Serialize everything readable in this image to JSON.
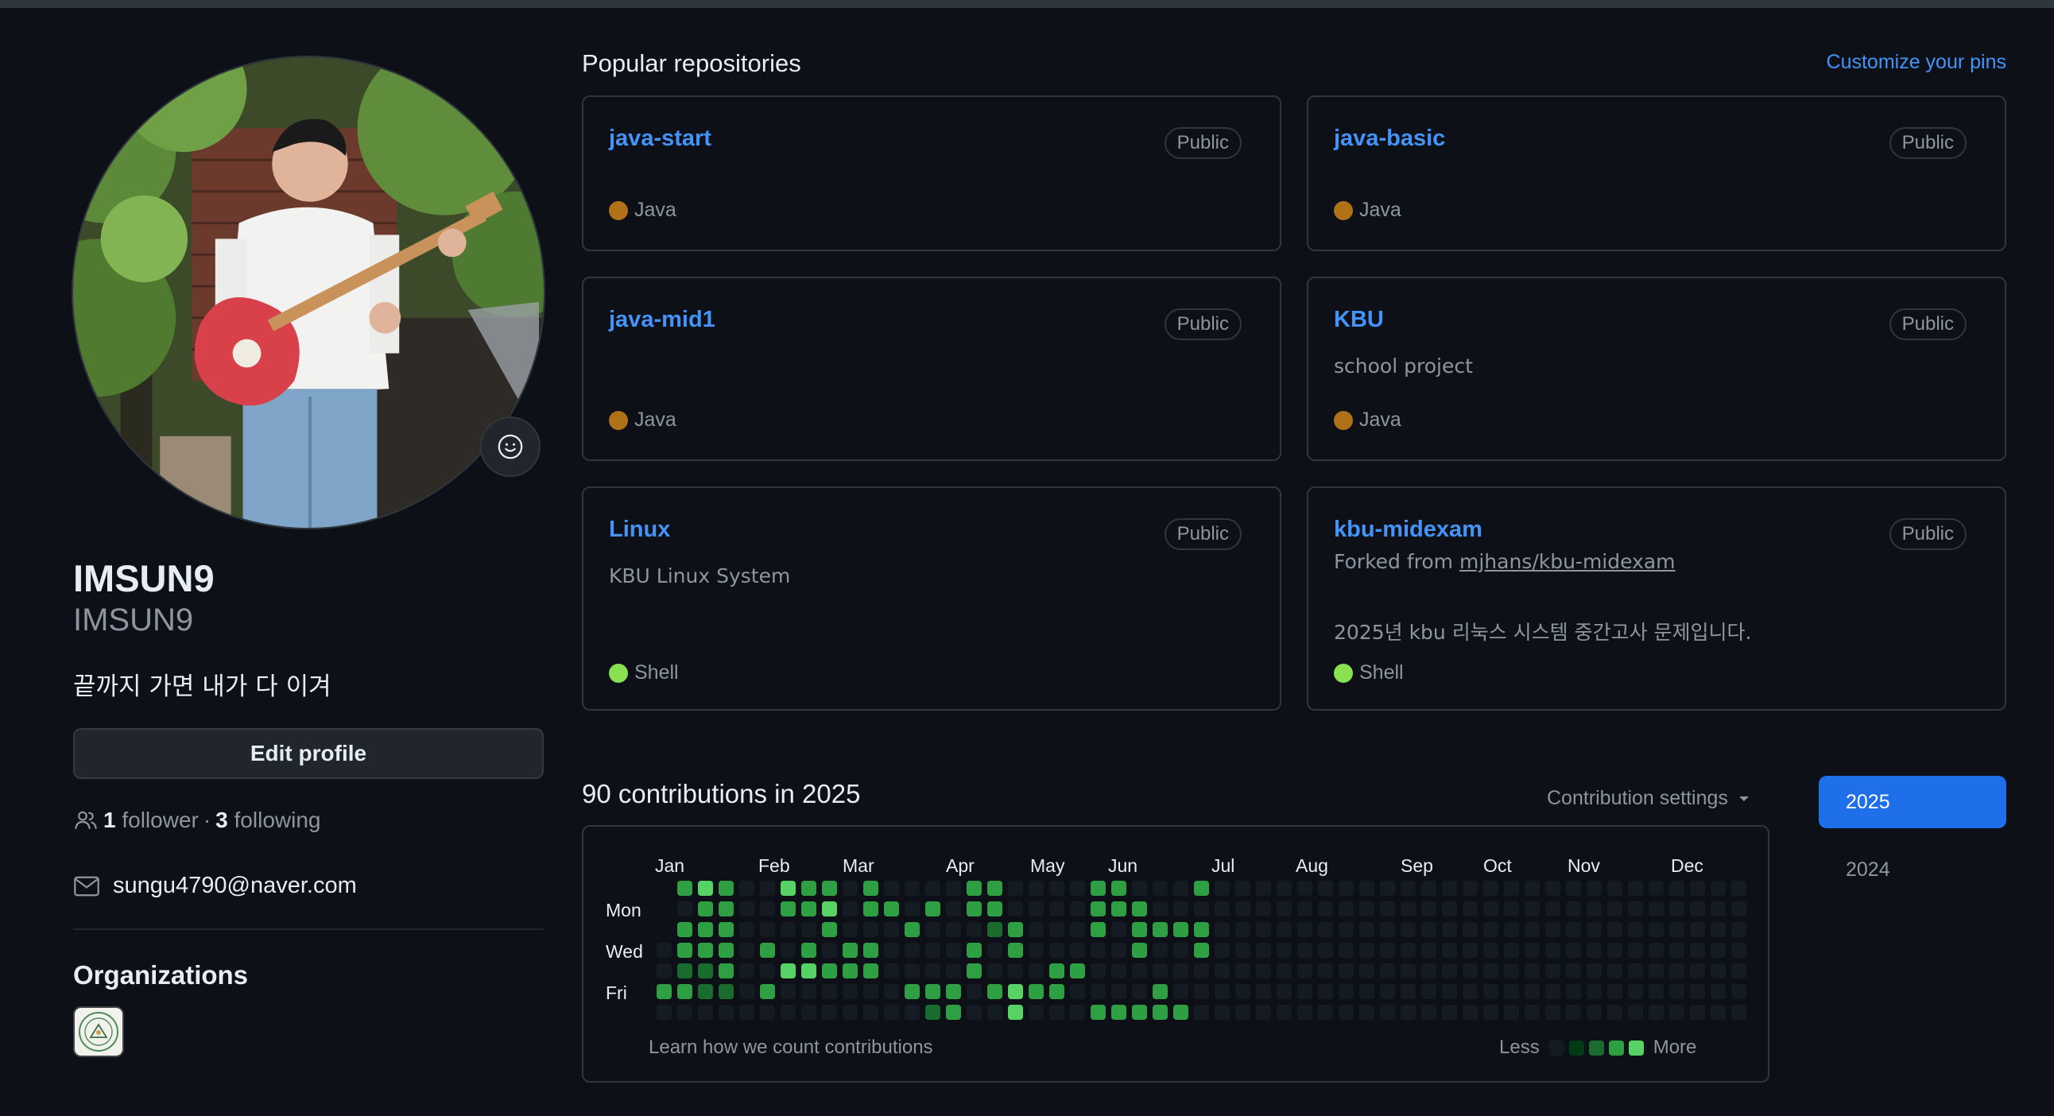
{
  "profile": {
    "display_name": "IMSUN9",
    "username": "IMSUN9",
    "bio": "끝까지 가면 내가 다 이겨",
    "edit_profile_label": "Edit profile",
    "followers_count": "1",
    "followers_label": "follower",
    "separator": "·",
    "following_count": "3",
    "following_label": "following",
    "email": "sungu4790@naver.com",
    "organizations_title": "Organizations"
  },
  "popular": {
    "title": "Popular repositories",
    "customize_label": "Customize your pins",
    "repos": [
      {
        "name": "java-start",
        "badge": "Public",
        "description": "",
        "forked_prefix": "",
        "forked_from": "",
        "language": "Java",
        "language_color": "#b07219"
      },
      {
        "name": "java-basic",
        "badge": "Public",
        "description": "",
        "forked_prefix": "",
        "forked_from": "",
        "language": "Java",
        "language_color": "#b07219"
      },
      {
        "name": "java-mid1",
        "badge": "Public",
        "description": "",
        "forked_prefix": "",
        "forked_from": "",
        "language": "Java",
        "language_color": "#b07219"
      },
      {
        "name": "KBU",
        "badge": "Public",
        "description": "school project",
        "forked_prefix": "",
        "forked_from": "",
        "language": "Java",
        "language_color": "#b07219"
      },
      {
        "name": "Linux",
        "badge": "Public",
        "description": "KBU Linux System",
        "forked_prefix": "",
        "forked_from": "",
        "language": "Shell",
        "language_color": "#89e051"
      },
      {
        "name": "kbu-midexam",
        "badge": "Public",
        "description": "2025년 kbu 리눅스 시스템 중간고사 문제입니다.",
        "forked_prefix": "Forked from",
        "forked_from": "mjhans/kbu-midexam",
        "language": "Shell",
        "language_color": "#89e051"
      }
    ]
  },
  "contributions": {
    "title": "90 contributions in 2025",
    "settings_label": "Contribution settings",
    "months": [
      "Jan",
      "Feb",
      "Mar",
      "Apr",
      "May",
      "Jun",
      "Jul",
      "Aug",
      "Sep",
      "Oct",
      "Nov",
      "Dec"
    ],
    "day_labels": [
      "Mon",
      "Wed",
      "Fri"
    ],
    "learn_label": "Learn how we count contributions",
    "less_label": "Less",
    "more_label": "More",
    "colors": [
      "#151b23",
      "#033a16",
      "#196c2e",
      "#2ea043",
      "#56d364"
    ],
    "empty_color": "#151b23",
    "future_color": "#151b23"
  },
  "years": {
    "active": "2025",
    "other": "2024",
    "active_color": "#1f6feb"
  },
  "theme": {
    "background": "#0d1117",
    "link": "#4493f8",
    "muted": "#8d96a0",
    "border": "#30363d"
  }
}
